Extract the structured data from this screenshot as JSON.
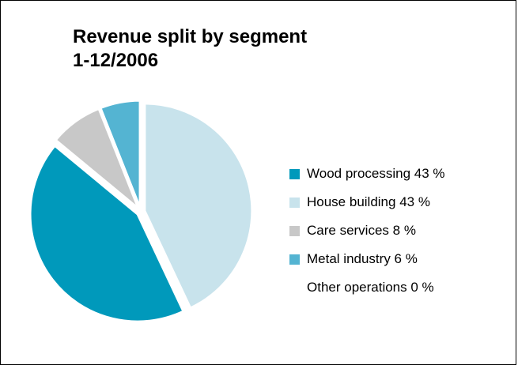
{
  "title": {
    "line1": "Revenue split by segment",
    "line2": "1-12/2006"
  },
  "chart_data": {
    "type": "pie",
    "title": "Revenue split by segment 1-12/2006",
    "legend_position": "right",
    "slices": [
      {
        "label": "Wood processing 43 %",
        "name": "Wood processing",
        "value": 43,
        "color": "#0099bb"
      },
      {
        "label": "House building 43 %",
        "name": "House building",
        "value": 43,
        "color": "#c8e3ec"
      },
      {
        "label": "Care services 8 %",
        "name": "Care services",
        "value": 8,
        "color": "#c8c8c8"
      },
      {
        "label": "Metal industry 6 %",
        "name": "Metal industry",
        "value": 6,
        "color": "#54b4d2"
      },
      {
        "label": "Other operations 0 %",
        "name": "Other operations",
        "value": 0,
        "color": "#ffffff"
      }
    ]
  }
}
